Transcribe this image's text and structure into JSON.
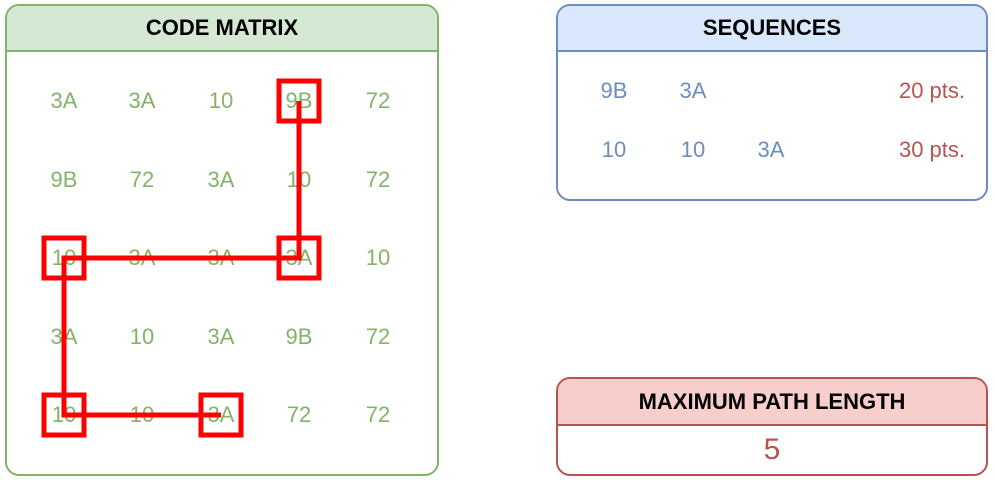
{
  "code_matrix": {
    "title": "CODE MATRIX",
    "rows": [
      [
        "3A",
        "3A",
        "10",
        "9B",
        "72"
      ],
      [
        "9B",
        "72",
        "3A",
        "10",
        "72"
      ],
      [
        "10",
        "3A",
        "3A",
        "3A",
        "10"
      ],
      [
        "3A",
        "10",
        "3A",
        "9B",
        "72"
      ],
      [
        "10",
        "10",
        "3A",
        "72",
        "72"
      ]
    ],
    "highlighted_path": [
      [
        0,
        3
      ],
      [
        2,
        3
      ],
      [
        2,
        0
      ],
      [
        4,
        0
      ],
      [
        4,
        2
      ]
    ]
  },
  "sequences": {
    "title": "SEQUENCES",
    "items": [
      {
        "codes": [
          "9B",
          "3A"
        ],
        "points": "20 pts."
      },
      {
        "codes": [
          "10",
          "10",
          "3A"
        ],
        "points": "30 pts."
      }
    ]
  },
  "max_path_length": {
    "title": "MAXIMUM PATH LENGTH",
    "value": "5"
  },
  "colors": {
    "matrix_border": "#82b366",
    "matrix_header": "#d5e8d4",
    "sequence_border": "#6c8ebf",
    "sequence_header": "#dae8fc",
    "max_border": "#b85450",
    "max_header": "#f8cecc",
    "path": "#ff0000"
  }
}
